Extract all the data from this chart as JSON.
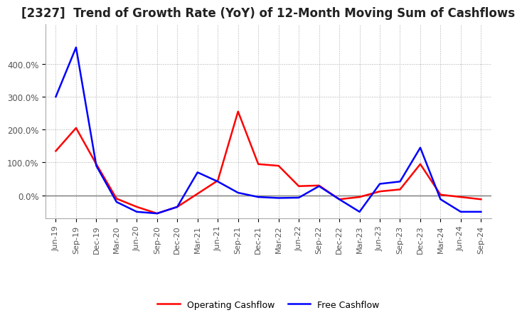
{
  "title": "[2327]  Trend of Growth Rate (YoY) of 12-Month Moving Sum of Cashflows",
  "legend_labels": [
    "Operating Cashflow",
    "Free Cashflow"
  ],
  "line_colors": [
    "#ff0000",
    "#0000ff"
  ],
  "background_color": "#ffffff",
  "plot_background": "#ffffff",
  "grid_color": "#aaaaaa",
  "x_labels": [
    "Jun-19",
    "Sep-19",
    "Dec-19",
    "Mar-20",
    "Jun-20",
    "Sep-20",
    "Dec-20",
    "Mar-21",
    "Jun-21",
    "Sep-21",
    "Dec-21",
    "Mar-22",
    "Jun-22",
    "Sep-22",
    "Dec-22",
    "Mar-23",
    "Jun-23",
    "Sep-23",
    "Dec-23",
    "Mar-24",
    "Jun-24",
    "Sep-24"
  ],
  "operating_cashflow": [
    1.35,
    2.05,
    0.95,
    -0.1,
    -0.35,
    -0.55,
    -0.35,
    0.05,
    0.45,
    2.55,
    0.95,
    0.9,
    0.28,
    0.3,
    -0.12,
    -0.05,
    0.12,
    0.18,
    0.95,
    0.02,
    -0.05,
    -0.12
  ],
  "free_cashflow": [
    3.0,
    4.5,
    0.9,
    -0.2,
    -0.5,
    -0.55,
    -0.35,
    0.7,
    0.42,
    0.08,
    -0.05,
    -0.08,
    -0.07,
    0.28,
    -0.12,
    -0.5,
    0.35,
    0.42,
    1.45,
    -0.12,
    -0.5,
    -0.5
  ],
  "ylim_min": -0.7,
  "ylim_max": 5.2,
  "ytick_vals": [
    0.0,
    1.0,
    2.0,
    3.0,
    4.0
  ],
  "ytick_labels": [
    "0.0%",
    "100.0%",
    "200.0%",
    "300.0%",
    "400.0%"
  ],
  "zero_line_color": "#777777",
  "spine_color": "#aaaaaa",
  "title_fontsize": 12,
  "tick_fontsize": 8,
  "legend_fontsize": 9,
  "line_width": 1.8
}
